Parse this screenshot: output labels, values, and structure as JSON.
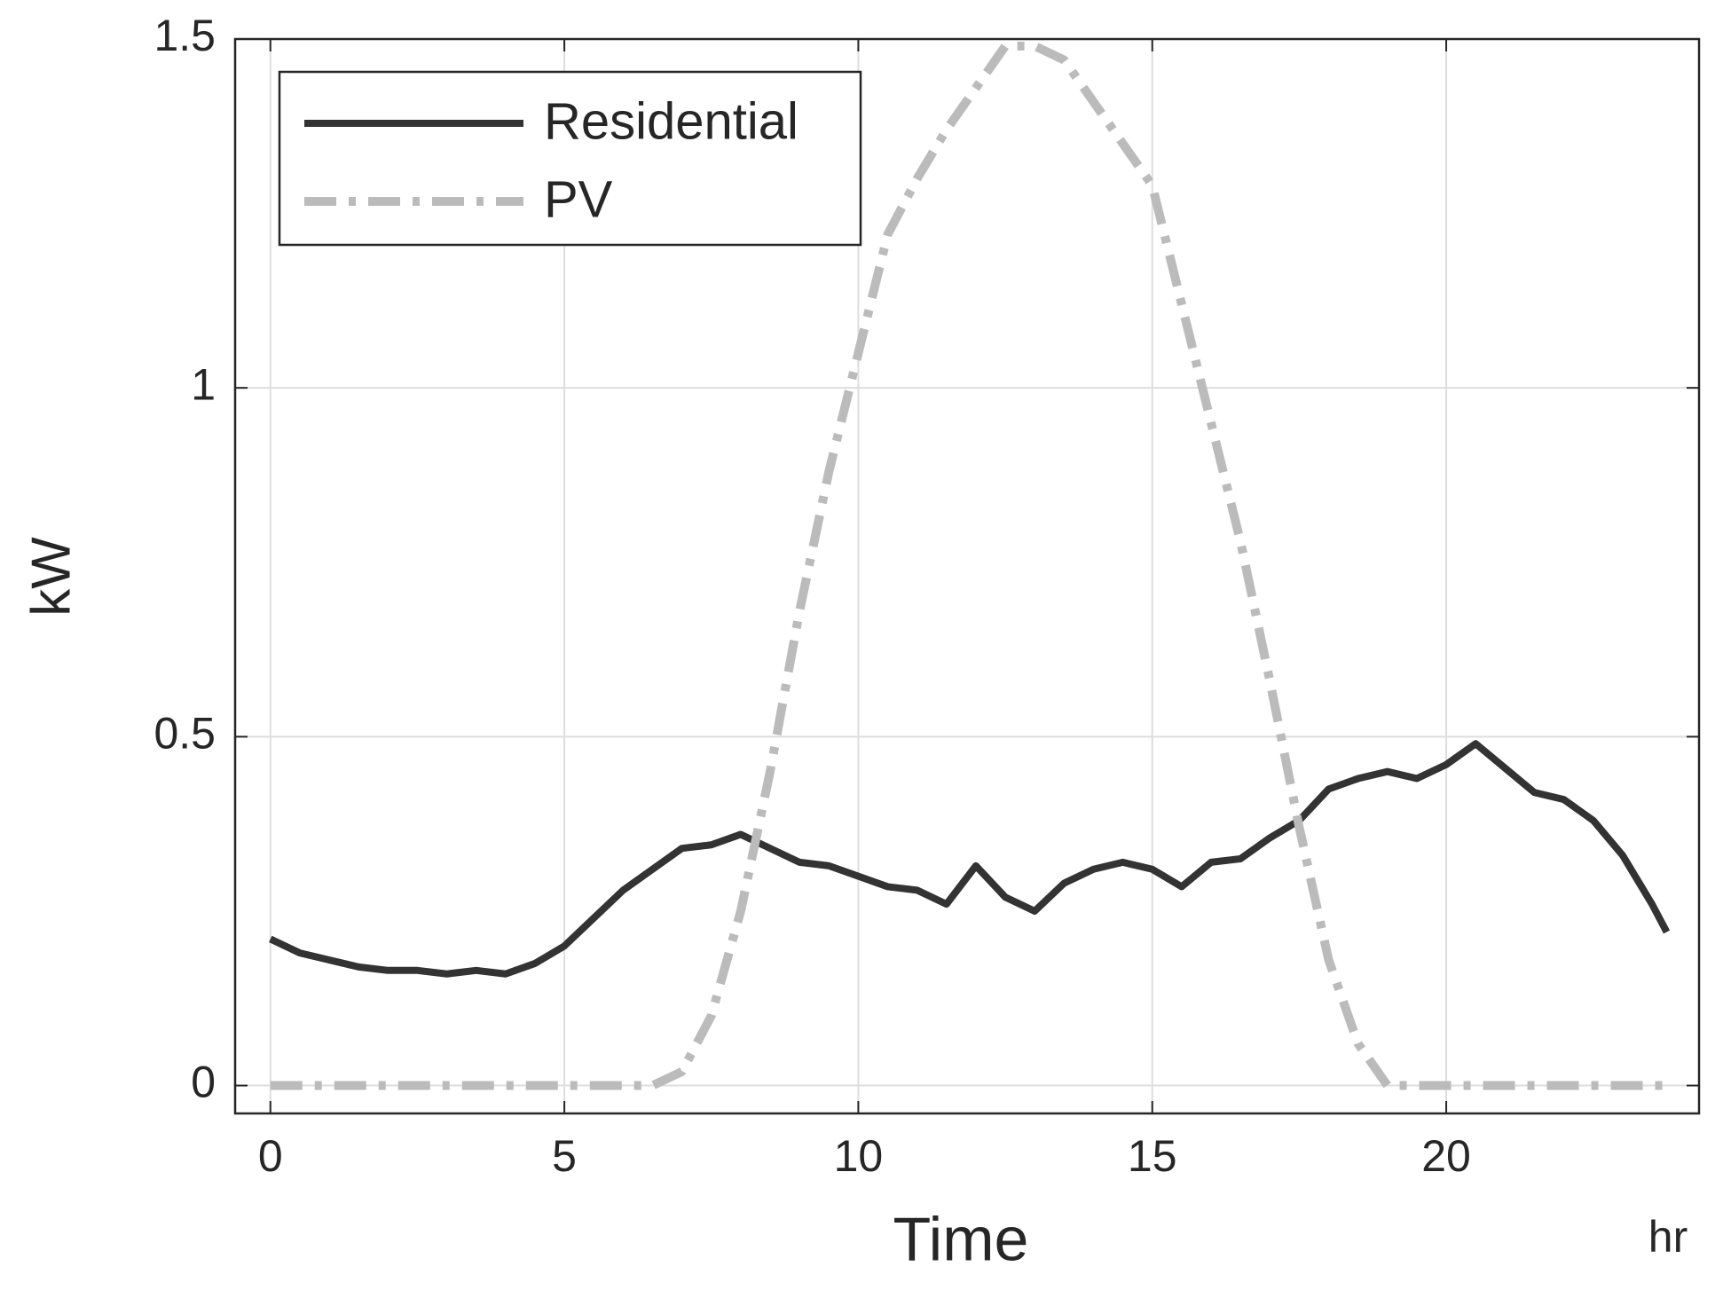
{
  "chart_data": {
    "type": "line",
    "xlabel": "Time",
    "xunit": "hr",
    "ylabel": "kW",
    "x": [
      0,
      0.5,
      1,
      1.5,
      2,
      2.5,
      3,
      3.5,
      4,
      4.5,
      5,
      5.5,
      6,
      6.5,
      7,
      7.5,
      8,
      8.5,
      9,
      9.5,
      10,
      10.5,
      11,
      11.5,
      12,
      12.5,
      13,
      13.5,
      14,
      14.5,
      15,
      15.5,
      16,
      16.5,
      17,
      17.5,
      18,
      18.5,
      19,
      19.5,
      20,
      20.5,
      21,
      21.5,
      22,
      22.5,
      23,
      23.5,
      23.75
    ],
    "series": [
      {
        "name": "Residential",
        "color": "#333333",
        "style": "solid",
        "values": [
          0.21,
          0.19,
          0.18,
          0.17,
          0.165,
          0.165,
          0.16,
          0.165,
          0.16,
          0.175,
          0.2,
          0.24,
          0.28,
          0.31,
          0.34,
          0.345,
          0.36,
          0.34,
          0.32,
          0.315,
          0.3,
          0.285,
          0.28,
          0.26,
          0.315,
          0.27,
          0.25,
          0.29,
          0.31,
          0.32,
          0.31,
          0.285,
          0.32,
          0.325,
          0.355,
          0.38,
          0.425,
          0.44,
          0.45,
          0.44,
          0.46,
          0.49,
          0.455,
          0.42,
          0.41,
          0.38,
          0.33,
          0.26,
          0.22
        ]
      },
      {
        "name": "PV",
        "color": "#bbbbbb",
        "style": "dashdot",
        "values": [
          0,
          0,
          0,
          0,
          0,
          0,
          0,
          0,
          0,
          0,
          0,
          0,
          0,
          0,
          0.02,
          0.1,
          0.25,
          0.45,
          0.68,
          0.88,
          1.05,
          1.22,
          1.3,
          1.37,
          1.43,
          1.49,
          1.49,
          1.47,
          1.41,
          1.35,
          1.29,
          1.12,
          0.95,
          0.78,
          0.58,
          0.37,
          0.18,
          0.06,
          0,
          0,
          0,
          0,
          0,
          0,
          0,
          0,
          0,
          0,
          0
        ]
      }
    ],
    "xlim": [
      -0.6,
      24.3
    ],
    "xticks": [
      0,
      5,
      10,
      15,
      20
    ],
    "ylim": [
      -0.04,
      1.5
    ],
    "yticks": [
      0,
      0.5,
      1,
      1.5
    ],
    "grid": true,
    "legend": "upper left"
  }
}
